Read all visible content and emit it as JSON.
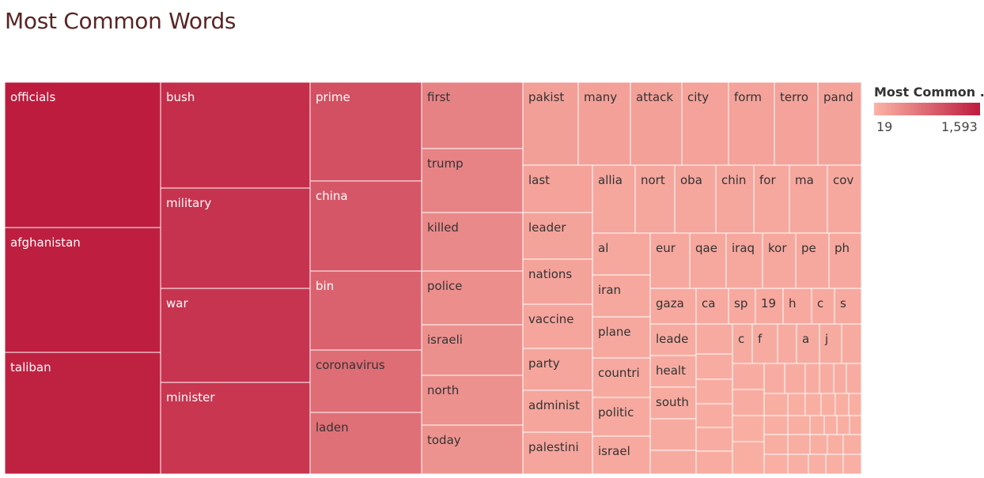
{
  "title": "Most Common Words",
  "legend": {
    "title": "Most Common ..",
    "min_label": "19",
    "max_label": "1,593",
    "color_low": "#fbb4a6",
    "color_high": "#bd1c3e"
  },
  "chart_data": {
    "type": "treemap",
    "measure": "word count",
    "color_range": [
      19,
      1593
    ],
    "labeled_words": [
      "officials",
      "afghanistan",
      "taliban",
      "bush",
      "military",
      "war",
      "minister",
      "prime",
      "china",
      "bin",
      "coronavirus",
      "laden",
      "first",
      "trump",
      "killed",
      "police",
      "israeli",
      "north",
      "today",
      "pakist",
      "many",
      "attack",
      "city",
      "form",
      "terro",
      "pand",
      "last",
      "allia",
      "nort",
      "oba",
      "chin",
      "for",
      "ma",
      "cov",
      "leader",
      "al",
      "eur",
      "qae",
      "iraq",
      "kor",
      "pe",
      "ph",
      "nations",
      "iran",
      "gaza",
      "ca",
      "sp",
      "19",
      "h",
      "c",
      "s",
      "vaccine",
      "plane",
      "leade",
      "f",
      "a",
      "j",
      "party",
      "countri",
      "healt",
      "administ",
      "south",
      "politic",
      "palestini",
      "israel"
    ]
  }
}
